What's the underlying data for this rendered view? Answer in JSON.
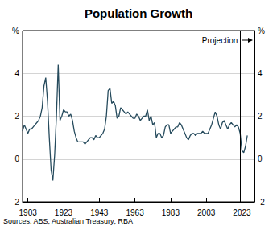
{
  "chart_data": {
    "type": "line",
    "title": "Population Growth",
    "source": "Sources: ABS; Australian Treasury; RBA",
    "annotation": "Projection",
    "projection_start": 2022,
    "color": "#264b5d",
    "x": [
      1900,
      1901,
      1902,
      1903,
      1904,
      1905,
      1906,
      1907,
      1908,
      1909,
      1910,
      1911,
      1912,
      1913,
      1914,
      1915,
      1916,
      1917,
      1918,
      1919,
      1920,
      1921,
      1922,
      1923,
      1924,
      1925,
      1926,
      1927,
      1928,
      1929,
      1930,
      1931,
      1932,
      1933,
      1934,
      1935,
      1936,
      1937,
      1938,
      1939,
      1940,
      1941,
      1942,
      1943,
      1944,
      1945,
      1946,
      1947,
      1948,
      1949,
      1950,
      1951,
      1952,
      1953,
      1954,
      1955,
      1956,
      1957,
      1958,
      1959,
      1960,
      1961,
      1962,
      1963,
      1964,
      1965,
      1966,
      1967,
      1968,
      1969,
      1970,
      1971,
      1972,
      1973,
      1974,
      1975,
      1976,
      1977,
      1978,
      1979,
      1980,
      1981,
      1982,
      1983,
      1984,
      1985,
      1986,
      1987,
      1988,
      1989,
      1990,
      1991,
      1992,
      1993,
      1994,
      1995,
      1996,
      1997,
      1998,
      1999,
      2000,
      2001,
      2002,
      2003,
      2004,
      2005,
      2006,
      2007,
      2008,
      2009,
      2010,
      2011,
      2012,
      2013,
      2014,
      2015,
      2016,
      2017,
      2018,
      2019,
      2020,
      2021,
      2022,
      2023,
      2024,
      2025,
      2026
    ],
    "values": [
      1.3,
      1.6,
      1.4,
      1.2,
      1.4,
      1.4,
      1.5,
      1.6,
      1.7,
      1.8,
      2.0,
      2.4,
      3.4,
      3.8,
      2.7,
      1.0,
      -0.5,
      -1.0,
      0.2,
      2.0,
      4.4,
      1.8,
      2.0,
      2.3,
      2.2,
      2.2,
      2.0,
      2.1,
      1.8,
      1.3,
      1.0,
      0.8,
      0.8,
      0.8,
      0.8,
      0.7,
      0.8,
      0.9,
      1.0,
      1.0,
      0.9,
      1.1,
      1.0,
      1.0,
      1.1,
      1.2,
      1.4,
      2.0,
      3.2,
      3.3,
      2.6,
      2.7,
      2.5,
      1.9,
      2.0,
      2.4,
      2.3,
      2.2,
      2.1,
      2.2,
      2.1,
      2.0,
      1.9,
      1.9,
      2.1,
      2.0,
      1.8,
      1.9,
      2.0,
      2.0,
      2.3,
      1.8,
      2.0,
      1.6,
      1.7,
      1.0,
      1.2,
      1.2,
      1.0,
      1.1,
      1.5,
      1.6,
      1.6,
      1.2,
      1.3,
      1.4,
      1.5,
      1.5,
      1.7,
      1.6,
      1.4,
      1.2,
      1.0,
      0.9,
      1.1,
      1.2,
      1.2,
      1.1,
      1.2,
      1.2,
      1.2,
      1.3,
      1.2,
      1.2,
      1.2,
      1.4,
      1.6,
      1.9,
      2.2,
      2.0,
      1.6,
      1.4,
      1.7,
      1.8,
      1.6,
      1.4,
      1.6,
      1.7,
      1.6,
      1.5,
      1.6,
      1.5,
      1.2,
      0.4,
      0.3,
      0.6,
      1.1
    ],
    "xlim": [
      1900,
      2030
    ],
    "xticks": [
      1903,
      1923,
      1943,
      1963,
      1983,
      2003,
      2023
    ],
    "ylim": [
      -2,
      6
    ],
    "yticks": [
      -2,
      0,
      2,
      4,
      {
        "value": 6,
        "label": "%"
      }
    ],
    "grid": true
  }
}
